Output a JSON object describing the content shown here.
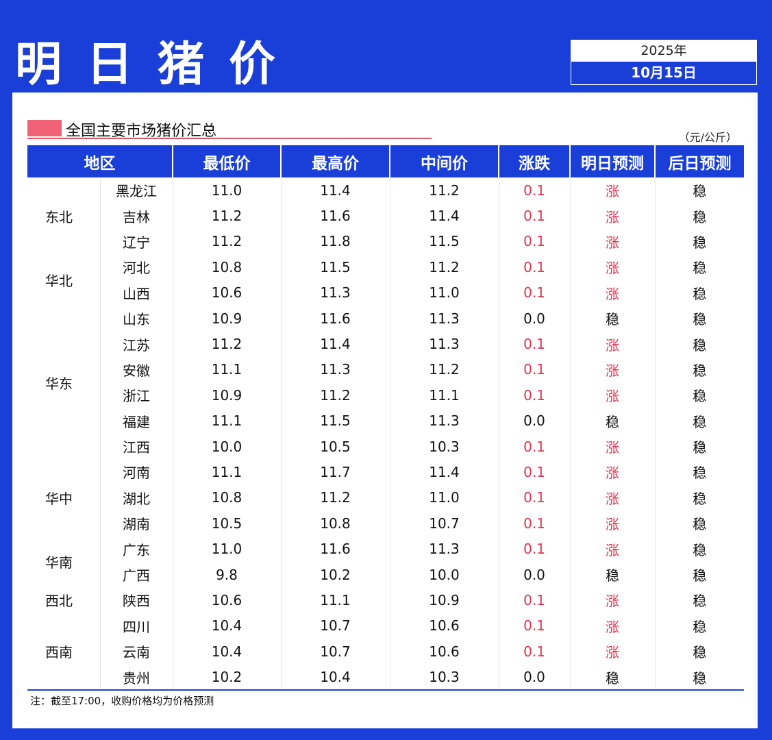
{
  "header": {
    "title": "明日猪价",
    "year": "2025年",
    "date": "10月15日"
  },
  "section": {
    "title": "全国主要市场猪价汇总",
    "unit": "（元/公斤）"
  },
  "columns": [
    "地区",
    "最低价",
    "最高价",
    "中间价",
    "涨跌",
    "明日预测",
    "后日预测"
  ],
  "regions": [
    {
      "name": "东北",
      "rows": [
        [
          "黑龙江",
          "11.0",
          "11.4",
          "11.2",
          "0.1",
          "涨",
          "稳"
        ],
        [
          "吉林",
          "11.2",
          "11.6",
          "11.4",
          "0.1",
          "涨",
          "稳"
        ],
        [
          "辽宁",
          "11.2",
          "11.8",
          "11.5",
          "0.1",
          "涨",
          "稳"
        ]
      ]
    },
    {
      "name": "华北",
      "rows": [
        [
          "河北",
          "10.8",
          "11.5",
          "11.2",
          "0.1",
          "涨",
          "稳"
        ],
        [
          "山西",
          "10.6",
          "11.3",
          "11.0",
          "0.1",
          "涨",
          "稳"
        ]
      ]
    },
    {
      "name": "华东",
      "rows": [
        [
          "山东",
          "10.9",
          "11.6",
          "11.3",
          "0.0",
          "稳",
          "稳"
        ],
        [
          "江苏",
          "11.2",
          "11.4",
          "11.3",
          "0.1",
          "涨",
          "稳"
        ],
        [
          "安徽",
          "11.1",
          "11.3",
          "11.2",
          "0.1",
          "涨",
          "稳"
        ],
        [
          "浙江",
          "10.9",
          "11.2",
          "11.1",
          "0.1",
          "涨",
          "稳"
        ],
        [
          "福建",
          "11.1",
          "11.5",
          "11.3",
          "0.0",
          "稳",
          "稳"
        ],
        [
          "江西",
          "10.0",
          "10.5",
          "10.3",
          "0.1",
          "涨",
          "稳"
        ]
      ]
    },
    {
      "name": "华中",
      "rows": [
        [
          "河南",
          "11.1",
          "11.7",
          "11.4",
          "0.1",
          "涨",
          "稳"
        ],
        [
          "湖北",
          "10.8",
          "11.2",
          "11.0",
          "0.1",
          "涨",
          "稳"
        ],
        [
          "湖南",
          "10.5",
          "10.8",
          "10.7",
          "0.1",
          "涨",
          "稳"
        ]
      ]
    },
    {
      "name": "华南",
      "rows": [
        [
          "广东",
          "11.0",
          "11.6",
          "11.3",
          "0.1",
          "涨",
          "稳"
        ],
        [
          "广西",
          "9.8",
          "10.2",
          "10.0",
          "0.0",
          "稳",
          "稳"
        ]
      ]
    },
    {
      "name": "西北",
      "rows": [
        [
          "陕西",
          "10.6",
          "11.1",
          "10.9",
          "0.1",
          "涨",
          "稳"
        ]
      ]
    },
    {
      "name": "西南",
      "rows": [
        [
          "四川",
          "10.4",
          "10.7",
          "10.6",
          "0.1",
          "涨",
          "稳"
        ],
        [
          "云南",
          "10.4",
          "10.7",
          "10.6",
          "0.1",
          "涨",
          "稳"
        ],
        [
          "贵州",
          "10.2",
          "10.4",
          "10.3",
          "0.0",
          "稳",
          "稳"
        ]
      ]
    }
  ],
  "note": "注：截至17:00，收购价格均为价格预测",
  "colors": {
    "brand": "#1a3fd8",
    "up": "#e0334f",
    "accent": "#f26277"
  }
}
